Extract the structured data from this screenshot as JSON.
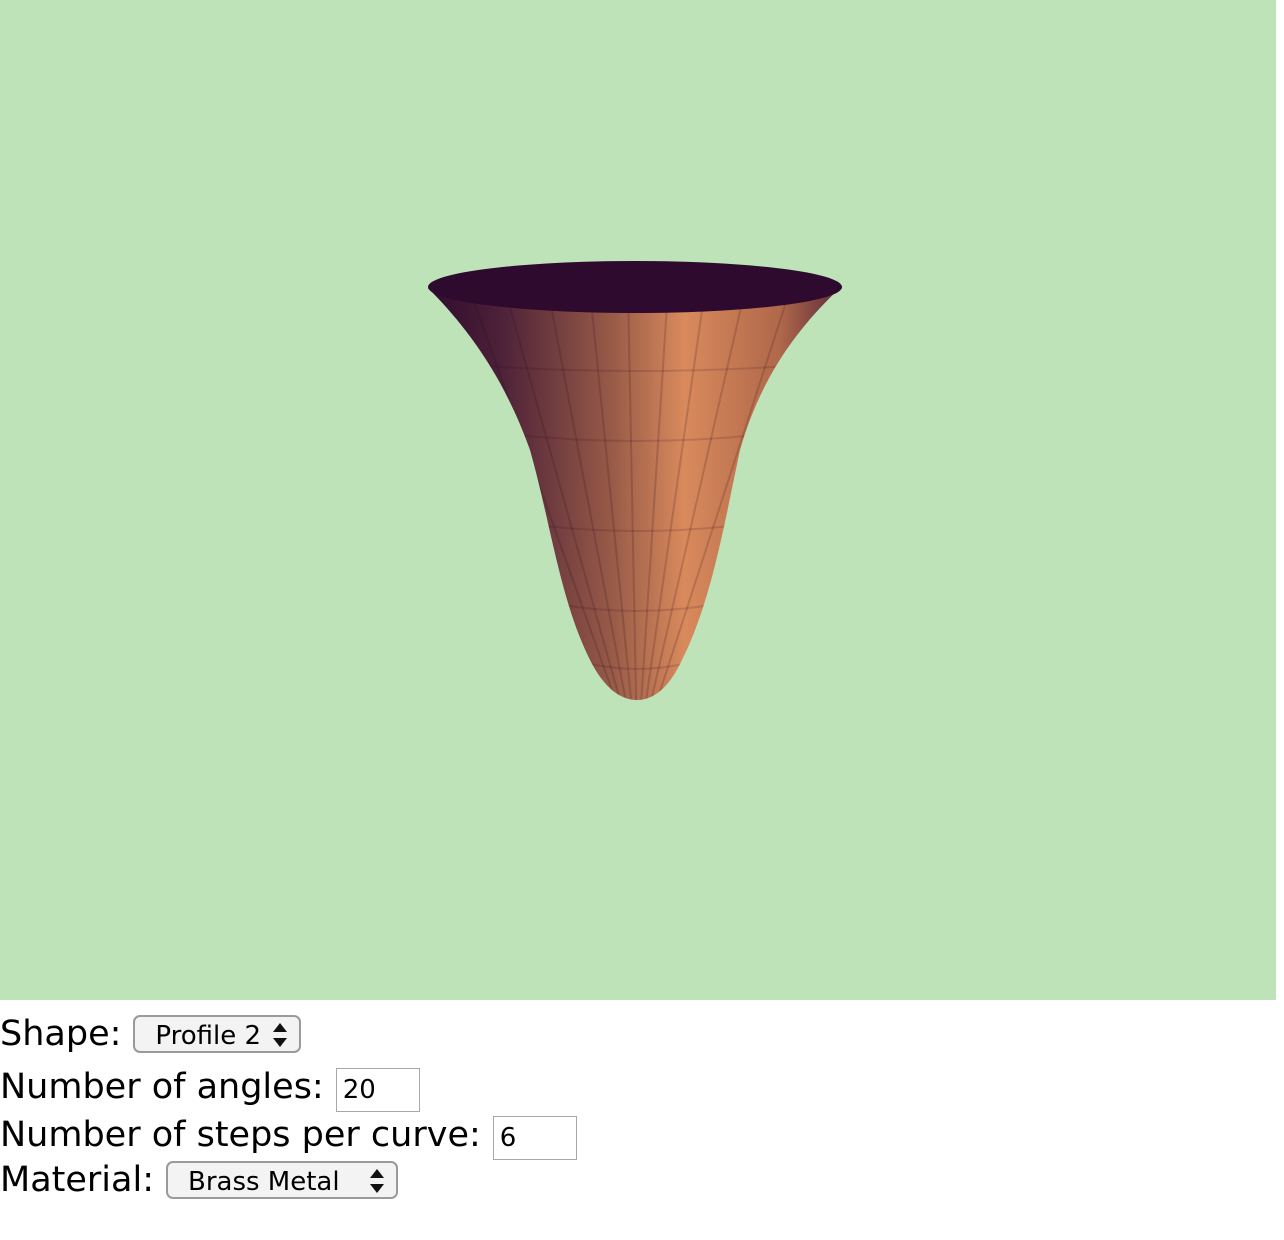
{
  "scene": {
    "background_color": "#bfe3b9",
    "object_icon": "3d-vase-mesh",
    "object_colors": {
      "light": "#d98a5c",
      "mid": "#9a5c48",
      "dark": "#5a2a3a",
      "interior": "#2e0a2e"
    }
  },
  "controls": {
    "shape": {
      "label": "Shape:",
      "selected": "Profile 2"
    },
    "angles": {
      "label": "Number of angles:",
      "value": "20"
    },
    "steps": {
      "label": "Number of steps per curve:",
      "value": "6"
    },
    "material": {
      "label": "Material:",
      "selected": "Brass Metal"
    }
  }
}
